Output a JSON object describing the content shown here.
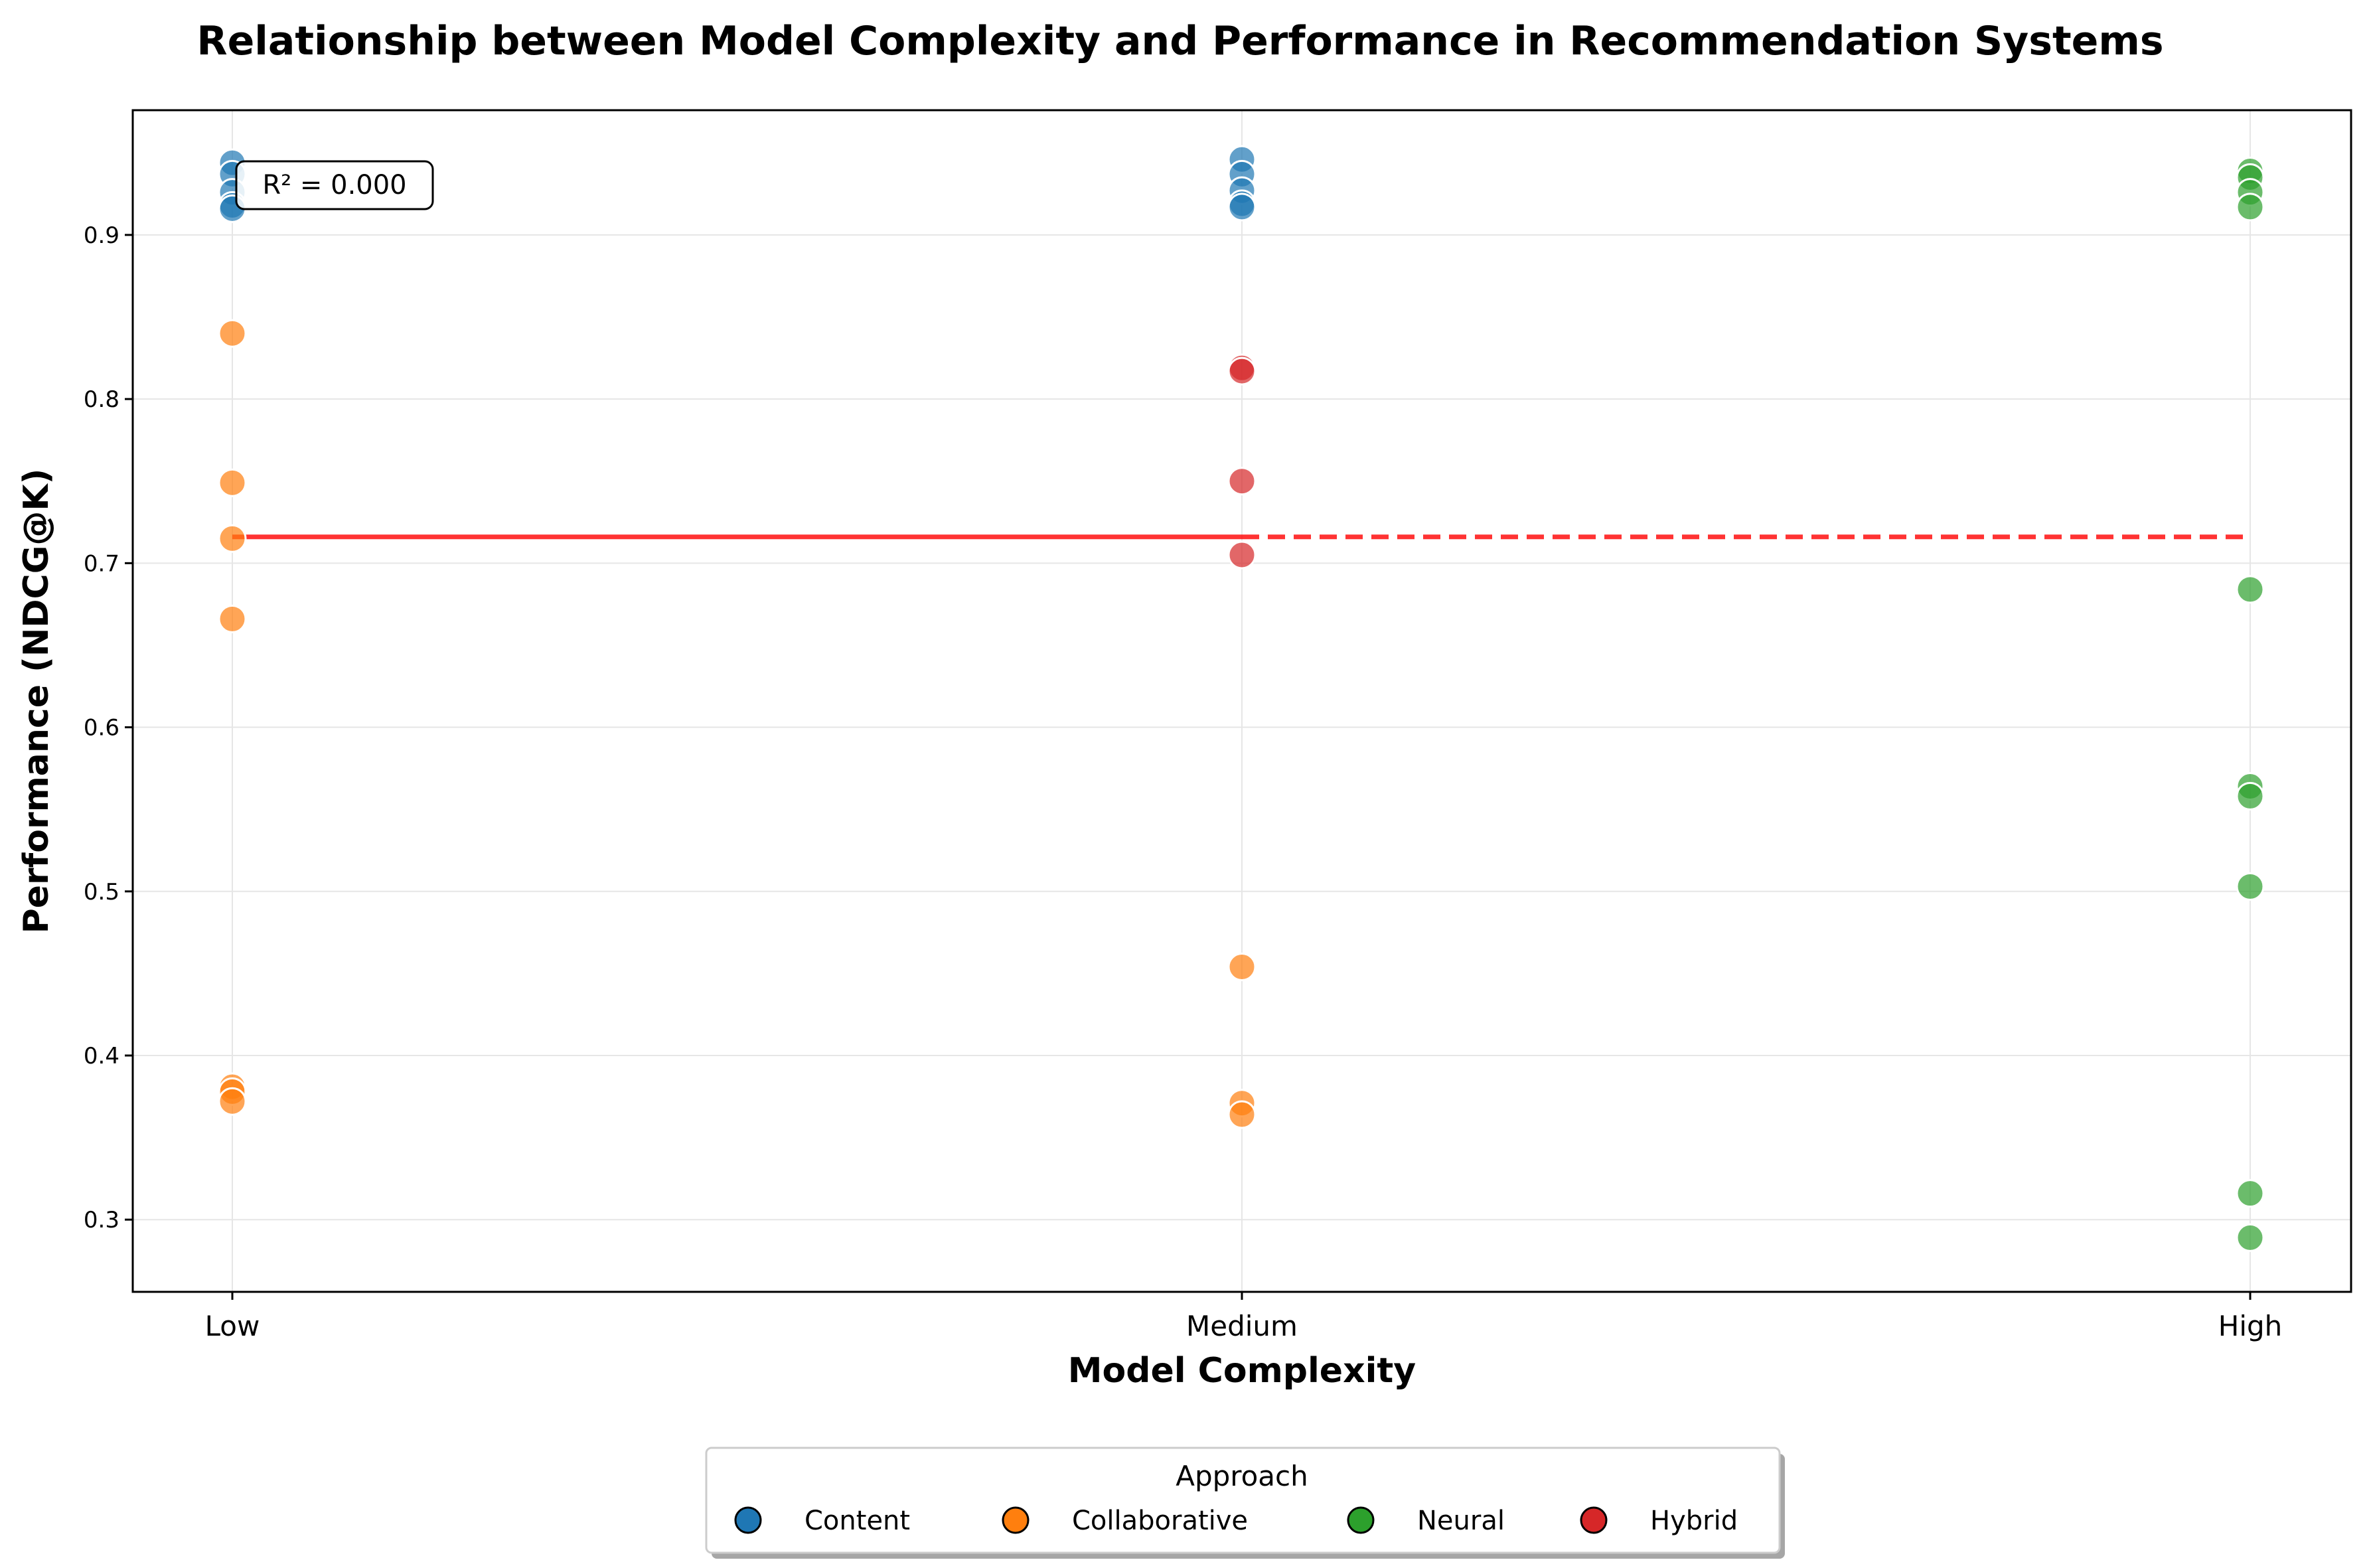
{
  "chart_data": {
    "type": "scatter",
    "title": "Relationship between Model Complexity and Performance in Recommendation Systems",
    "xlabel": "Model Complexity",
    "ylabel": "Performance (NDCG@K)",
    "categories": [
      "Low",
      "Medium",
      "High"
    ],
    "ylim": [
      0.256,
      0.976
    ],
    "yticks": [
      "0.3",
      "0.4",
      "0.5",
      "0.6",
      "0.7",
      "0.8",
      "0.9"
    ],
    "grid": true,
    "legend": {
      "title": "Approach",
      "placement": "bottom-center"
    },
    "series": [
      {
        "name": "Content",
        "color": "#1f77b4",
        "points": [
          {
            "x": "Low",
            "y": 0.944
          },
          {
            "x": "Low",
            "y": 0.937
          },
          {
            "x": "Low",
            "y": 0.926
          },
          {
            "x": "Low",
            "y": 0.918
          },
          {
            "x": "Low",
            "y": 0.916
          },
          {
            "x": "Medium",
            "y": 0.946
          },
          {
            "x": "Medium",
            "y": 0.937
          },
          {
            "x": "Medium",
            "y": 0.927
          },
          {
            "x": "Medium",
            "y": 0.919
          },
          {
            "x": "Medium",
            "y": 0.917
          }
        ]
      },
      {
        "name": "Collaborative",
        "color": "#ff7f0e",
        "points": [
          {
            "x": "Low",
            "y": 0.84
          },
          {
            "x": "Low",
            "y": 0.749
          },
          {
            "x": "Low",
            "y": 0.715
          },
          {
            "x": "Low",
            "y": 0.666
          },
          {
            "x": "Low",
            "y": 0.381
          },
          {
            "x": "Low",
            "y": 0.378
          },
          {
            "x": "Low",
            "y": 0.372
          },
          {
            "x": "Medium",
            "y": 0.454
          },
          {
            "x": "Medium",
            "y": 0.371
          },
          {
            "x": "Medium",
            "y": 0.364
          }
        ]
      },
      {
        "name": "Neural",
        "color": "#2ca02c",
        "points": [
          {
            "x": "High",
            "y": 0.939
          },
          {
            "x": "High",
            "y": 0.935
          },
          {
            "x": "High",
            "y": 0.926
          },
          {
            "x": "High",
            "y": 0.917
          },
          {
            "x": "High",
            "y": 0.684
          },
          {
            "x": "High",
            "y": 0.564
          },
          {
            "x": "High",
            "y": 0.558
          },
          {
            "x": "High",
            "y": 0.503
          },
          {
            "x": "High",
            "y": 0.316
          },
          {
            "x": "High",
            "y": 0.289
          }
        ]
      },
      {
        "name": "Hybrid",
        "color": "#d62728",
        "points": [
          {
            "x": "Medium",
            "y": 0.819
          },
          {
            "x": "Medium",
            "y": 0.817
          },
          {
            "x": "Medium",
            "y": 0.75
          },
          {
            "x": "Medium",
            "y": 0.705
          }
        ]
      }
    ],
    "trend_line": {
      "color": "#ff0000",
      "y": 0.716,
      "solid_range": [
        "Low",
        "Medium"
      ],
      "dashed_range": [
        "Medium",
        "High"
      ]
    },
    "annotation": "R² = 0.000"
  }
}
